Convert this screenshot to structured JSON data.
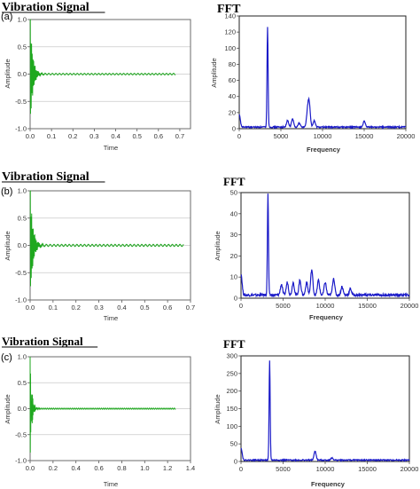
{
  "chart_data": [
    {
      "panel": "(a)",
      "title": "Vibration Signal",
      "type": "line",
      "xlabel": "Time",
      "ylabel": "Amplitude",
      "xlim": [
        0,
        0.75
      ],
      "ylim": [
        -1.0,
        1.0
      ],
      "xticks": [
        "0.0",
        "0.1",
        "0.2",
        "0.3",
        "0.4",
        "0.5",
        "0.6",
        "0.7"
      ],
      "yticks": [
        "-1.0",
        "-0.5",
        "0.0",
        "0.5",
        "1.0"
      ],
      "grid": true,
      "color": "#1fa81f",
      "signal": {
        "duration": 0.68,
        "peak": 1.0,
        "decay": 0.012,
        "steady": 0.015,
        "freq": 60
      }
    },
    {
      "panel": "(a)",
      "title": "FFT",
      "type": "line",
      "xlabel": "Frequency",
      "ylabel": "Amplitude",
      "xlim": [
        0,
        20000
      ],
      "ylim": [
        0,
        140
      ],
      "xticks": [
        "0",
        "5000",
        "10000",
        "15000",
        "20000"
      ],
      "yticks": [
        "0",
        "20",
        "40",
        "60",
        "80",
        "100",
        "120",
        "140"
      ],
      "grid": false,
      "color": "#1b1bc8",
      "peaks": [
        [
          0,
          15
        ],
        [
          3400,
          125
        ],
        [
          5800,
          8
        ],
        [
          6400,
          10
        ],
        [
          7200,
          5
        ],
        [
          8200,
          18
        ],
        [
          8400,
          28
        ],
        [
          9000,
          8
        ],
        [
          15000,
          7
        ]
      ],
      "baseline": 2
    },
    {
      "panel": "(b)",
      "title": "Vibration Signal",
      "type": "line",
      "xlabel": "Time",
      "ylabel": "Amplitude",
      "xlim": [
        0,
        0.7
      ],
      "ylim": [
        -1.0,
        1.0
      ],
      "xticks": [
        "0.0",
        "0.1",
        "0.2",
        "0.3",
        "0.4",
        "0.5",
        "0.6",
        "0.7"
      ],
      "yticks": [
        "-1.0",
        "-0.5",
        "0.0",
        "0.5",
        "1.0"
      ],
      "grid": true,
      "color": "#1fa81f",
      "signal": {
        "duration": 0.67,
        "peak": 1.0,
        "decay": 0.012,
        "steady": 0.02,
        "freq": 60
      }
    },
    {
      "panel": "(b)",
      "title": "FFT",
      "type": "line",
      "xlabel": "Frequency",
      "ylabel": "Amplitude",
      "xlim": [
        0,
        20000
      ],
      "ylim": [
        0,
        50
      ],
      "xticks": [
        "0",
        "5000",
        "10000",
        "15000",
        "20000"
      ],
      "yticks": [
        "0",
        "10",
        "20",
        "30",
        "40",
        "50"
      ],
      "grid": false,
      "color": "#1b1bc8",
      "peaks": [
        [
          0,
          10
        ],
        [
          3200,
          48
        ],
        [
          4800,
          5
        ],
        [
          5500,
          6
        ],
        [
          6200,
          6
        ],
        [
          7000,
          7
        ],
        [
          7800,
          6
        ],
        [
          8400,
          12
        ],
        [
          9200,
          7
        ],
        [
          10000,
          6
        ],
        [
          11000,
          8
        ],
        [
          12000,
          4
        ],
        [
          13000,
          3
        ]
      ],
      "baseline": 1.5
    },
    {
      "panel": "(c)",
      "title": "Vibration Signal",
      "type": "line",
      "xlabel": "Time",
      "ylabel": "Amplitude",
      "xlim": [
        0,
        1.4
      ],
      "ylim": [
        -1.0,
        1.0
      ],
      "xticks": [
        "0.0",
        "0.2",
        "0.4",
        "0.6",
        "0.8",
        "1.0",
        "1.2",
        "1.4"
      ],
      "yticks": [
        "-1.0",
        "-0.5",
        "0.0",
        "0.5",
        "1.0"
      ],
      "grid": true,
      "color": "#1fa81f",
      "signal": {
        "duration": 1.27,
        "peak": 1.0,
        "decay": 0.015,
        "steady": 0.012,
        "freq": 55
      }
    },
    {
      "panel": "(c)",
      "title": "FFT",
      "type": "line",
      "xlabel": "Frequency",
      "ylabel": "Amplitude",
      "xlim": [
        0,
        20000
      ],
      "ylim": [
        0,
        300
      ],
      "xticks": [
        "0",
        "5000",
        "10000",
        "15000",
        "20000"
      ],
      "yticks": [
        "0",
        "50",
        "100",
        "150",
        "200",
        "250",
        "300"
      ],
      "grid": false,
      "color": "#1b1bc8",
      "peaks": [
        [
          0,
          35
        ],
        [
          3400,
          282
        ],
        [
          8800,
          25
        ],
        [
          10800,
          6
        ]
      ],
      "baseline": 4
    }
  ]
}
